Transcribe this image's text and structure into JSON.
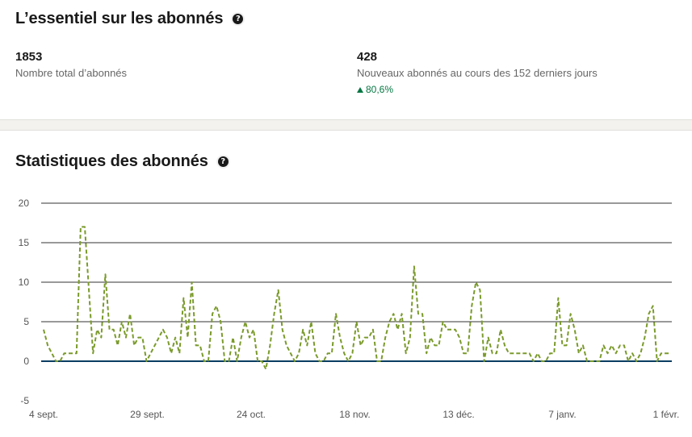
{
  "summary": {
    "title": "L’essentiel sur les abonnés",
    "total": {
      "value": "1853",
      "label": "Nombre total d’abonnés"
    },
    "new": {
      "value": "428",
      "label": "Nouveaux abonnés au cours des 152 derniers jours",
      "trend": "80,6%"
    },
    "help_icon": "question-circle-icon"
  },
  "stats_section": {
    "title": "Statistiques des abonnés",
    "help_icon": "question-circle-icon"
  },
  "colors": {
    "series": "#7a9a2b",
    "zero_line": "#0a3d62",
    "grid": "#333333",
    "trend_up": "#057642"
  },
  "chart_data": {
    "type": "line",
    "title": "",
    "xlabel": "",
    "ylabel": "",
    "ylim": [
      -5,
      20
    ],
    "yticks": [
      20,
      15,
      10,
      5,
      0,
      -5
    ],
    "xtick_labels": [
      "4 sept.",
      "29 sept.",
      "24 oct.",
      "18 nov.",
      "13 déc.",
      "7 janv.",
      "1 févr."
    ],
    "grid": true,
    "series": [
      {
        "style": "dashed",
        "values": [
          4,
          2,
          1,
          0,
          0,
          1,
          1,
          1,
          1,
          17,
          17,
          9,
          1,
          4,
          3,
          11,
          4,
          4,
          2,
          5,
          3,
          6,
          2,
          3,
          3,
          0,
          1,
          2,
          3,
          4,
          3,
          1,
          3,
          1,
          8,
          3,
          10,
          2,
          2,
          0,
          0,
          6,
          7,
          5,
          0,
          0,
          3,
          0,
          3,
          5,
          3,
          4,
          0,
          0,
          -1,
          2,
          6,
          9,
          4,
          2,
          1,
          0,
          1,
          4,
          2,
          5,
          1,
          0,
          0,
          1,
          1,
          6,
          3,
          1,
          0,
          1,
          5,
          2,
          3,
          3,
          4,
          0,
          0,
          3,
          5,
          6,
          4,
          6,
          1,
          3,
          12,
          6,
          6,
          1,
          3,
          2,
          2,
          5,
          4,
          4,
          4,
          3,
          1,
          1,
          7,
          10,
          9,
          0,
          3,
          1,
          1,
          4,
          2,
          1,
          1,
          1,
          1,
          1,
          1,
          0,
          1,
          0,
          0,
          1,
          1,
          8,
          2,
          2,
          6,
          4,
          1,
          2,
          0,
          0,
          0,
          0,
          2,
          1,
          2,
          1,
          2,
          2,
          0,
          1,
          0,
          1,
          3,
          6,
          7,
          0,
          1,
          1,
          1
        ]
      },
      {
        "style": "solid",
        "values": "baseline-zero"
      }
    ]
  }
}
